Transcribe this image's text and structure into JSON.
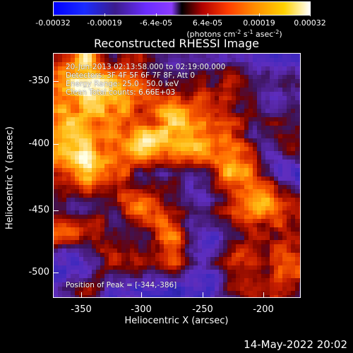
{
  "colorbar": {
    "labels": [
      "-0.00032",
      "-0.00019",
      "-6.4e-05",
      "6.4e-05",
      "0.00019",
      "0.00032"
    ],
    "units_base": "(photons cm",
    "units_exp1": "-2",
    "units_mid": " s",
    "units_exp2": "-1",
    "units_mid2": " asec",
    "units_exp3": "-2",
    "units_end": ")"
  },
  "title": "Reconstructed RHESSI Image",
  "overlay": {
    "time_range": "20-Jun-2013 02:13:58.000 to 02:19:00.000",
    "detectors": "Detectors: 3F 4F 5F 6F 7F 8F, Att 0",
    "energy": "Energy Range: 25.0 - 50.0 keV",
    "method": "Clean    Total counts: 6.66E+03",
    "peak": "Position of Peak = [-344,-386]"
  },
  "axes": {
    "x_ticks": [
      "-350",
      "-300",
      "-250",
      "-200"
    ],
    "y_ticks": [
      "-350",
      "-400",
      "-450",
      "-500"
    ],
    "xlabel": "Heliocentric X (arcsec)",
    "ylabel": "Heliocentric Y (arcsec)"
  },
  "footer": {
    "date": "14-May-2022 20:02"
  },
  "colors": {
    "background": "#000000",
    "axis": "#ffffff"
  }
}
